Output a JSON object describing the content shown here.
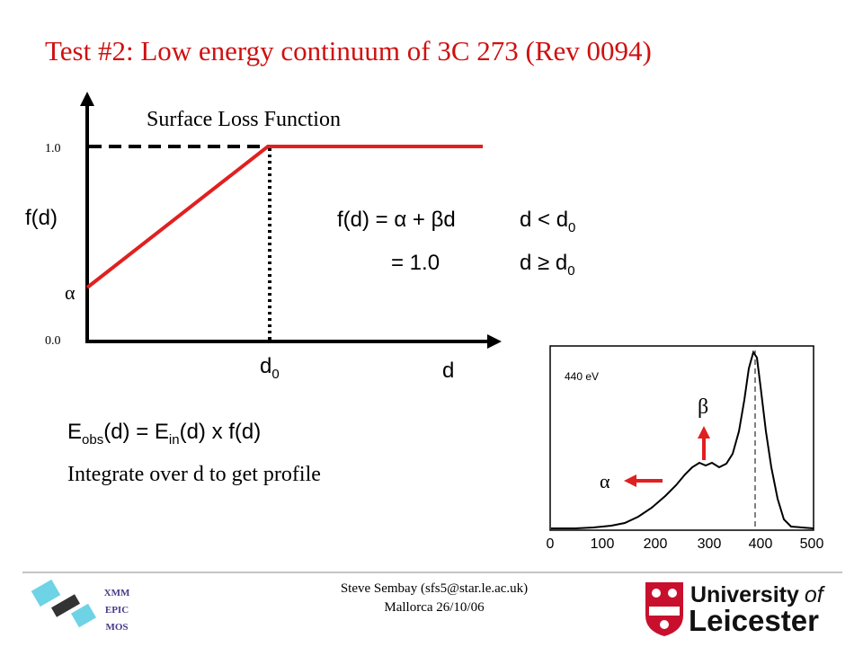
{
  "title": "Test #2: Low energy continuum of 3C 273 (Rev 0094)",
  "diagram": {
    "title": "Surface Loss Function",
    "y_label": "f(d)",
    "y_ticks": [
      "1.0",
      "0.0"
    ],
    "alpha_label": "α",
    "x_label": "d",
    "d0": {
      "base": "d",
      "sub": "0"
    }
  },
  "equations": [
    {
      "lhs": "f(d) = α + βd",
      "cond": "d < d",
      "cond_sub": "0"
    },
    {
      "lhs": "= 1.0",
      "cond": "d ≥ d",
      "cond_sub": "0"
    }
  ],
  "formula": {
    "parts": [
      "E",
      "obs",
      "(d) = E",
      "in",
      "(d) x f(d)"
    ]
  },
  "note": "Integrate over d to get profile",
  "inset": {
    "label": "440 eV",
    "xticks": [
      "0",
      "100",
      "200",
      "300",
      "400",
      "500"
    ],
    "beta": "β",
    "alpha": "α"
  },
  "footer": {
    "logo_left": [
      "XMM",
      "EPIC",
      "MOS"
    ],
    "author": "Steve Sembay (sfs5@star.le.ac.uk)",
    "event": "Mallorca 26/10/06",
    "university": [
      "University",
      "of",
      "Leicester"
    ]
  }
}
